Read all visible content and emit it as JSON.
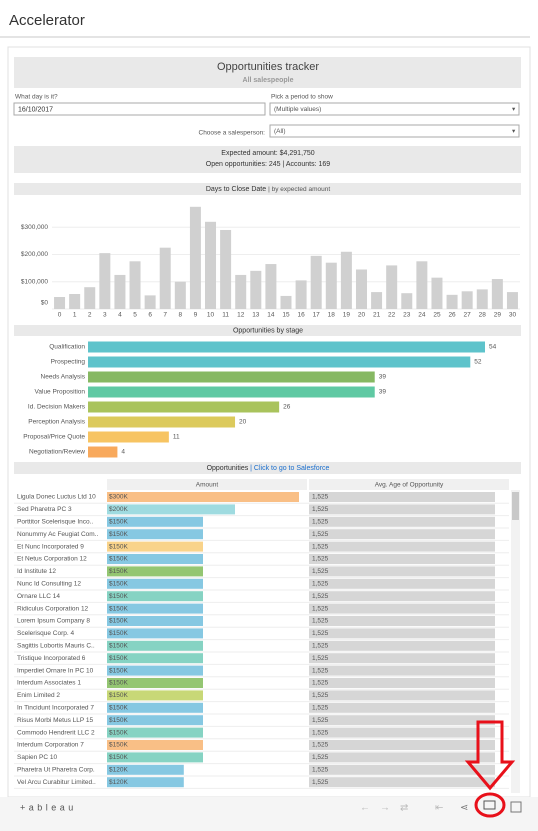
{
  "header": {
    "title": "Accelerator"
  },
  "dashboard": {
    "title": "Opportunities tracker",
    "subtitle": "All salespeople"
  },
  "filters": {
    "day_label": "What day is it?",
    "day_value": "16/10/2017",
    "period_label": "Pick a period to show",
    "period_value": "(Multiple values)",
    "salesperson_label": "Choose a salesperson:",
    "salesperson_value": "(All)"
  },
  "summary": {
    "expected": "Expected amount: $4,291,750",
    "open": "Open opportunities: 245  | Accounts: 169"
  },
  "chart_data": [
    {
      "type": "bar",
      "title": "Days to Close Date",
      "subtitle": "| by expected amount",
      "color": "#d0d0d0",
      "categories": [
        "0",
        "1",
        "2",
        "3",
        "4",
        "5",
        "6",
        "7",
        "8",
        "9",
        "10",
        "11",
        "12",
        "13",
        "14",
        "15",
        "16",
        "17",
        "18",
        "19",
        "20",
        "21",
        "22",
        "23",
        "24",
        "25",
        "26",
        "27",
        "28",
        "29",
        "30"
      ],
      "values": [
        44000,
        55000,
        80000,
        205000,
        125000,
        175000,
        50000,
        225000,
        100000,
        375000,
        320000,
        290000,
        125000,
        140000,
        165000,
        48000,
        105000,
        195000,
        170000,
        210000,
        145000,
        62000,
        160000,
        58000,
        175000,
        115000,
        52000,
        65000,
        72000,
        110000,
        62000
      ],
      "ylim": [
        0,
        400000
      ],
      "yticks": [
        {
          "value": 0,
          "label": "$0"
        },
        {
          "value": 100000,
          "label": "$100,000"
        },
        {
          "value": 200000,
          "label": "$200,000"
        },
        {
          "value": 300000,
          "label": "$300,000"
        }
      ]
    },
    {
      "type": "hbar",
      "title": "Opportunities by stage",
      "categories": [
        "Qualification",
        "Prospecting",
        "Needs Analysis",
        "Value Proposition",
        "Id. Decision Makers",
        "Perception Analysis",
        "Proposal/Price Quote",
        "Negotiation/Review"
      ],
      "values": [
        54,
        52,
        39,
        39,
        26,
        20,
        11,
        4
      ],
      "colors": [
        "#5ec3cb",
        "#5ec3cb",
        "#86b862",
        "#5fc9a3",
        "#a9c35c",
        "#dcca5c",
        "#f7c462",
        "#f8a95c"
      ]
    }
  ],
  "table": {
    "title": "Opportunities",
    "link": "| Click to go to Salesforce",
    "columns": [
      "Amount",
      "Avg. Age of Opportunity"
    ],
    "rows": [
      {
        "name": "Ligula Donec Luctus Ltd 10",
        "amount": 300000,
        "amount_label": "$300K",
        "age": "1,525",
        "color": "#f9bf86"
      },
      {
        "name": "Sed Pharetra PC 3",
        "amount": 200000,
        "amount_label": "$200K",
        "age": "1,525",
        "color": "#9fdbe0"
      },
      {
        "name": "Porttitor Scelerisque Inco..",
        "amount": 150000,
        "amount_label": "$150K",
        "age": "1,525",
        "color": "#86c8e2"
      },
      {
        "name": "Nonummy Ac Feugiat Com..",
        "amount": 150000,
        "amount_label": "$150K",
        "age": "1,525",
        "color": "#86c8e2"
      },
      {
        "name": "Et Nunc Incorporated 9",
        "amount": 150000,
        "amount_label": "$150K",
        "age": "1,525",
        "color": "#f9d38a"
      },
      {
        "name": "Et Netus Corporation 12",
        "amount": 150000,
        "amount_label": "$150K",
        "age": "1,525",
        "color": "#86c8e2"
      },
      {
        "name": "Id Institute 12",
        "amount": 150000,
        "amount_label": "$150K",
        "age": "1,525",
        "color": "#94c672"
      },
      {
        "name": "Nunc Id Consulting 12",
        "amount": 150000,
        "amount_label": "$150K",
        "age": "1,525",
        "color": "#86c8e2"
      },
      {
        "name": "Ornare LLC 14",
        "amount": 150000,
        "amount_label": "$150K",
        "age": "1,525",
        "color": "#86d3c3"
      },
      {
        "name": "Ridiculus Corporation 12",
        "amount": 150000,
        "amount_label": "$150K",
        "age": "1,525",
        "color": "#86c8e2"
      },
      {
        "name": "Lorem Ipsum Company 8",
        "amount": 150000,
        "amount_label": "$150K",
        "age": "1,525",
        "color": "#86c8e2"
      },
      {
        "name": "Scelerisque Corp. 4",
        "amount": 150000,
        "amount_label": "$150K",
        "age": "1,525",
        "color": "#86c8e2"
      },
      {
        "name": "Sagittis Lobortis Mauris C..",
        "amount": 150000,
        "amount_label": "$150K",
        "age": "1,525",
        "color": "#86d3c3"
      },
      {
        "name": "Tristique Incorporated 6",
        "amount": 150000,
        "amount_label": "$150K",
        "age": "1,525",
        "color": "#86d3c3"
      },
      {
        "name": "Imperdiet Ornare In PC 10",
        "amount": 150000,
        "amount_label": "$150K",
        "age": "1,525",
        "color": "#86c8e2"
      },
      {
        "name": "Interdum Associates 1",
        "amount": 150000,
        "amount_label": "$150K",
        "age": "1,525",
        "color": "#94c672"
      },
      {
        "name": "Enim Limited 2",
        "amount": 150000,
        "amount_label": "$150K",
        "age": "1,525",
        "color": "#c8d877"
      },
      {
        "name": "In Tincidunt Incorporated 7",
        "amount": 150000,
        "amount_label": "$150K",
        "age": "1,525",
        "color": "#86c8e2"
      },
      {
        "name": "Risus Morbi Metus LLP 15",
        "amount": 150000,
        "amount_label": "$150K",
        "age": "1,525",
        "color": "#86c8e2"
      },
      {
        "name": "Commodo Hendrerit LLC 2",
        "amount": 150000,
        "amount_label": "$150K",
        "age": "1,525",
        "color": "#86d3c3"
      },
      {
        "name": "Interdum Corporation 7",
        "amount": 150000,
        "amount_label": "$150K",
        "age": "1,525",
        "color": "#f9bf86"
      },
      {
        "name": "Sapien PC 10",
        "amount": 150000,
        "amount_label": "$150K",
        "age": "1,525",
        "color": "#86d3c3"
      },
      {
        "name": "Pharetra Ut Pharetra Corp.",
        "amount": 120000,
        "amount_label": "$120K",
        "age": "1,525",
        "color": "#86c8e2"
      },
      {
        "name": "Vel Arcu Curabitur Limited..",
        "amount": 120000,
        "amount_label": "$120K",
        "age": "1,525",
        "color": "#86c8e2"
      }
    ]
  },
  "toolbar": {
    "logo": "+ a b l e a u"
  }
}
